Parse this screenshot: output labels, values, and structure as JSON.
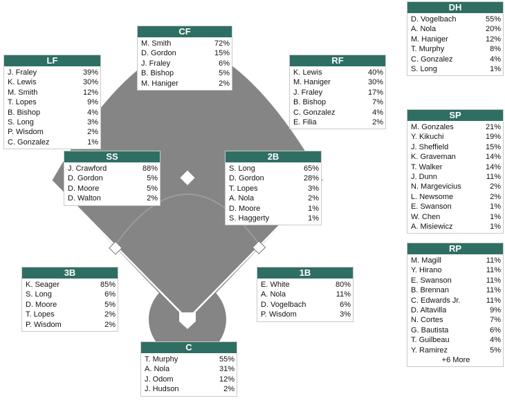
{
  "positions": [
    {
      "key": "cf",
      "label": "CF",
      "players": [
        {
          "name": "M. Smith",
          "pct": "72%"
        },
        {
          "name": "D. Gordon",
          "pct": "15%"
        },
        {
          "name": "J. Fraley",
          "pct": "6%"
        },
        {
          "name": "B. Bishop",
          "pct": "5%"
        },
        {
          "name": "M. Haniger",
          "pct": "2%"
        }
      ]
    },
    {
      "key": "lf",
      "label": "LF",
      "players": [
        {
          "name": "J. Fraley",
          "pct": "39%"
        },
        {
          "name": "K. Lewis",
          "pct": "30%"
        },
        {
          "name": "M. Smith",
          "pct": "12%"
        },
        {
          "name": "T. Lopes",
          "pct": "9%"
        },
        {
          "name": "B. Bishop",
          "pct": "4%"
        },
        {
          "name": "S. Long",
          "pct": "3%"
        },
        {
          "name": "P. Wisdom",
          "pct": "2%"
        },
        {
          "name": "C. Gonzalez",
          "pct": "1%"
        }
      ]
    },
    {
      "key": "rf",
      "label": "RF",
      "players": [
        {
          "name": "K. Lewis",
          "pct": "40%"
        },
        {
          "name": "M. Haniger",
          "pct": "30%"
        },
        {
          "name": "J. Fraley",
          "pct": "17%"
        },
        {
          "name": "B. Bishop",
          "pct": "7%"
        },
        {
          "name": "C. Gonzalez",
          "pct": "4%"
        },
        {
          "name": "E. Filia",
          "pct": "2%"
        }
      ]
    },
    {
      "key": "ss",
      "label": "SS",
      "players": [
        {
          "name": "J. Crawford",
          "pct": "88%"
        },
        {
          "name": "D. Gordon",
          "pct": "5%"
        },
        {
          "name": "D. Moore",
          "pct": "5%"
        },
        {
          "name": "D. Walton",
          "pct": "2%"
        }
      ]
    },
    {
      "key": "2b",
      "label": "2B",
      "players": [
        {
          "name": "S. Long",
          "pct": "65%"
        },
        {
          "name": "D. Gordon",
          "pct": "28%"
        },
        {
          "name": "T. Lopes",
          "pct": "3%"
        },
        {
          "name": "A. Nola",
          "pct": "2%"
        },
        {
          "name": "D. Moore",
          "pct": "1%"
        },
        {
          "name": "S. Haggerty",
          "pct": "1%"
        }
      ]
    },
    {
      "key": "3b",
      "label": "3B",
      "players": [
        {
          "name": "K. Seager",
          "pct": "85%"
        },
        {
          "name": "S. Long",
          "pct": "6%"
        },
        {
          "name": "D. Moore",
          "pct": "5%"
        },
        {
          "name": "T. Lopes",
          "pct": "2%"
        },
        {
          "name": "P. Wisdom",
          "pct": "2%"
        }
      ]
    },
    {
      "key": "1b",
      "label": "1B",
      "players": [
        {
          "name": "E. White",
          "pct": "80%"
        },
        {
          "name": "A. Nola",
          "pct": "11%"
        },
        {
          "name": "D. Vogelbach",
          "pct": "6%"
        },
        {
          "name": "P. Wisdom",
          "pct": "3%"
        }
      ]
    },
    {
      "key": "c",
      "label": "C",
      "players": [
        {
          "name": "T. Murphy",
          "pct": "55%"
        },
        {
          "name": "A. Nola",
          "pct": "31%"
        },
        {
          "name": "J. Odom",
          "pct": "12%"
        },
        {
          "name": "J. Hudson",
          "pct": "2%"
        }
      ]
    },
    {
      "key": "dh",
      "label": "DH",
      "players": [
        {
          "name": "D. Vogelbach",
          "pct": "55%"
        },
        {
          "name": "A. Nola",
          "pct": "20%"
        },
        {
          "name": "M. Haniger",
          "pct": "12%"
        },
        {
          "name": "T. Murphy",
          "pct": "8%"
        },
        {
          "name": "C. Gonzalez",
          "pct": "4%"
        },
        {
          "name": "S. Long",
          "pct": "1%"
        }
      ]
    },
    {
      "key": "sp",
      "label": "SP",
      "players": [
        {
          "name": "M. Gonzales",
          "pct": "21%"
        },
        {
          "name": "Y. Kikuchi",
          "pct": "19%"
        },
        {
          "name": "J. Sheffield",
          "pct": "15%"
        },
        {
          "name": "K. Graveman",
          "pct": "14%"
        },
        {
          "name": "T. Walker",
          "pct": "14%"
        },
        {
          "name": "J. Dunn",
          "pct": "11%"
        },
        {
          "name": "N. Margevicius",
          "pct": "2%"
        },
        {
          "name": "L. Newsome",
          "pct": "2%"
        },
        {
          "name": "E. Swanson",
          "pct": "1%"
        },
        {
          "name": "W. Chen",
          "pct": "1%"
        },
        {
          "name": "A. Misiewicz",
          "pct": "1%"
        }
      ]
    },
    {
      "key": "rp",
      "label": "RP",
      "more": "+6 More",
      "players": [
        {
          "name": "M. Magill",
          "pct": "11%"
        },
        {
          "name": "Y. Hirano",
          "pct": "11%"
        },
        {
          "name": "E. Swanson",
          "pct": "11%"
        },
        {
          "name": "B. Brennan",
          "pct": "11%"
        },
        {
          "name": "C. Edwards Jr.",
          "pct": "11%"
        },
        {
          "name": "D. Altavilla",
          "pct": "9%"
        },
        {
          "name": "N. Cortes",
          "pct": "7%"
        },
        {
          "name": "G. Bautista",
          "pct": "6%"
        },
        {
          "name": "T. Guilbeau",
          "pct": "4%"
        },
        {
          "name": "Y. Ramirez",
          "pct": "5%"
        }
      ]
    }
  ],
  "colors": {
    "header": "#2f6f63",
    "field": "#858585",
    "base": "#ffffff"
  }
}
